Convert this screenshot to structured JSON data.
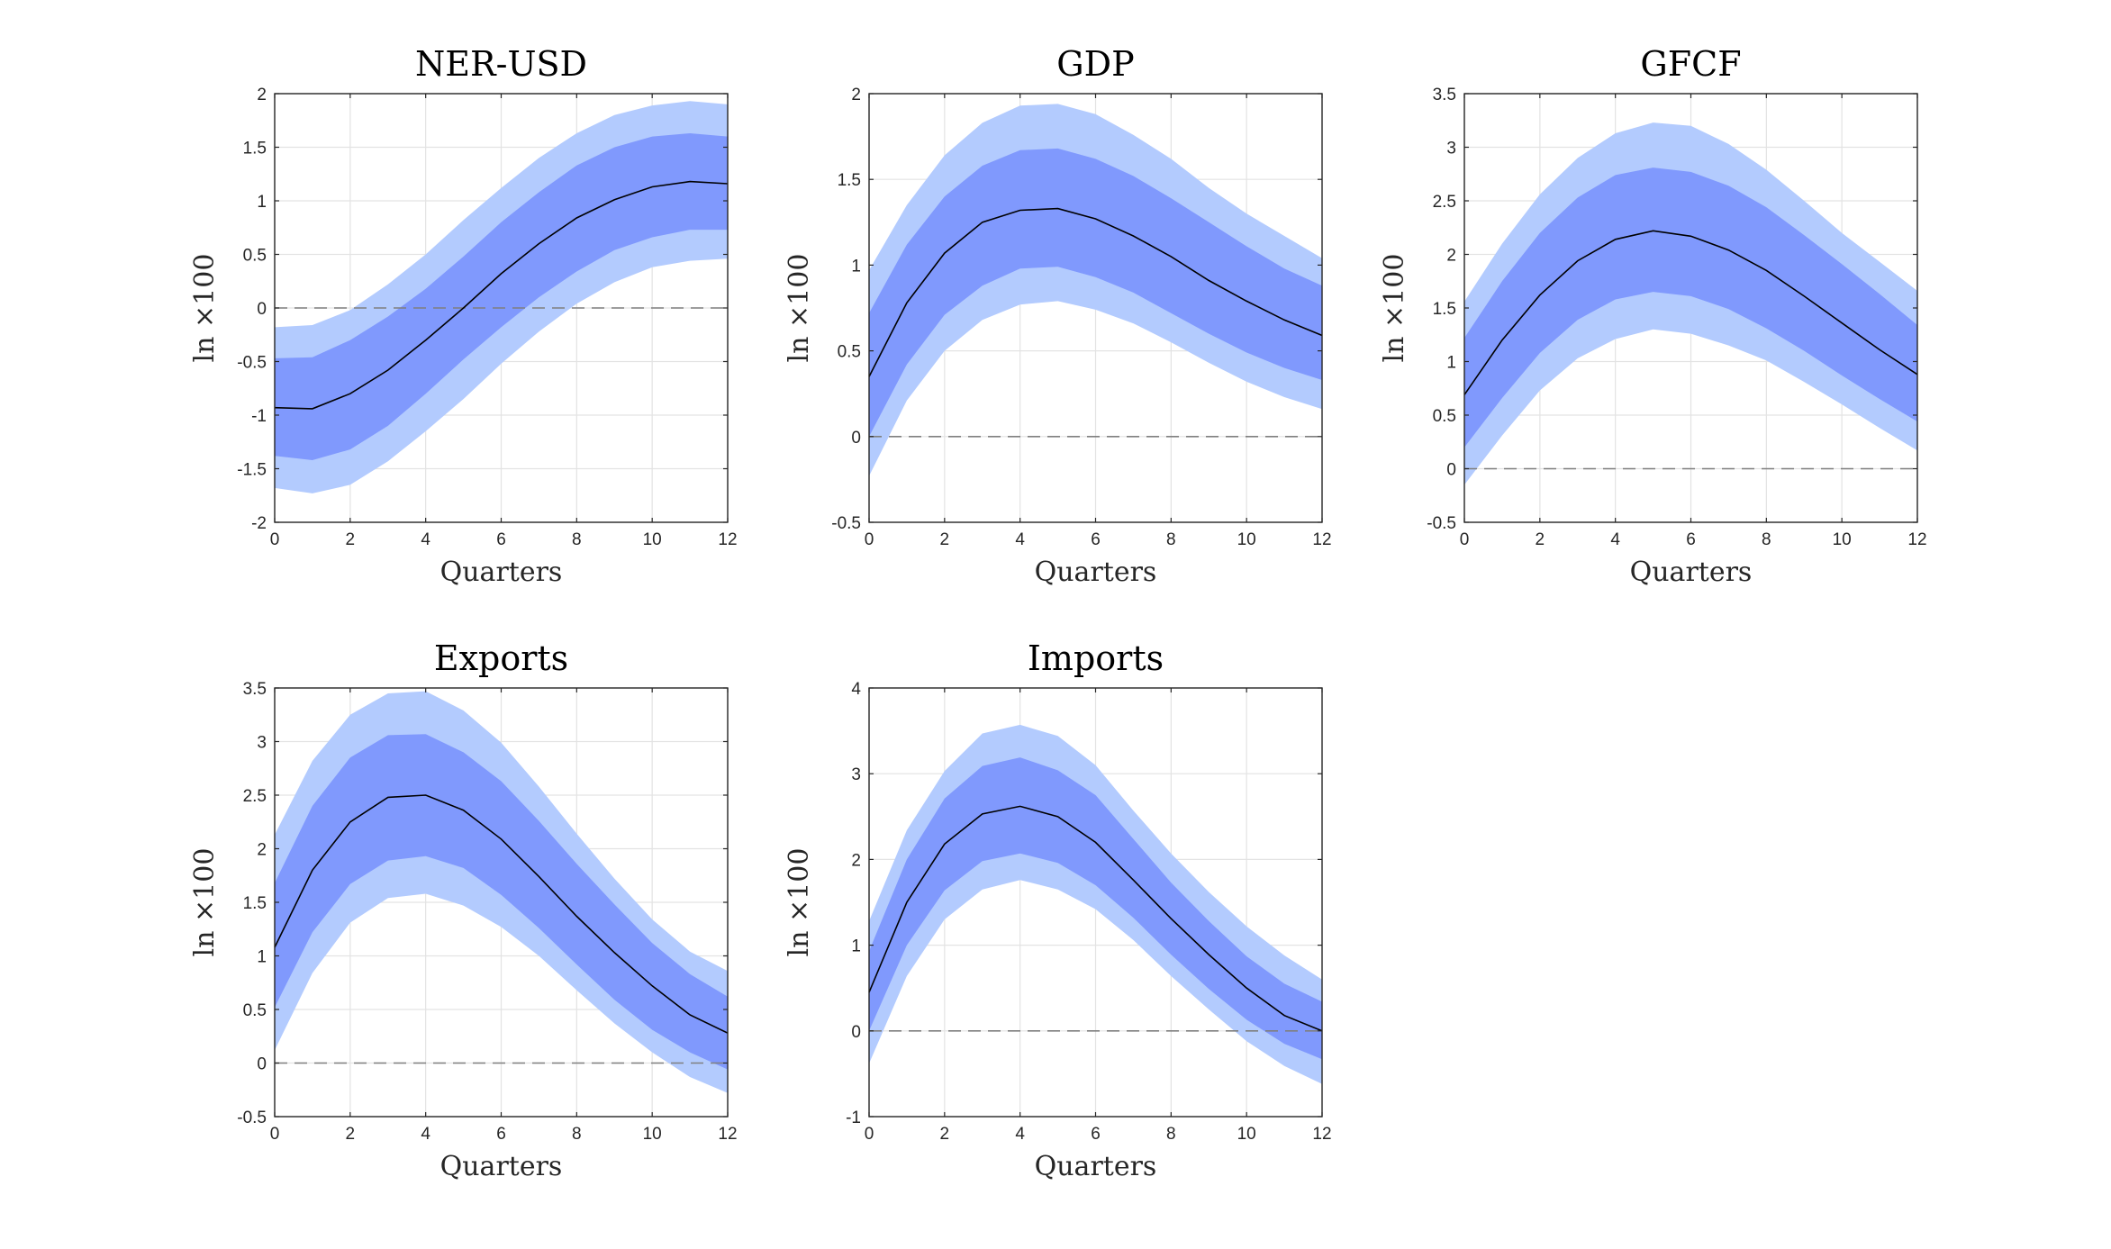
{
  "figure": {
    "colors": {
      "outer_band": "#b3cbfe",
      "inner_band": "#8099fd",
      "median_line": "#000000",
      "zero_line": "#7f7f7f",
      "grid": "#e3e3e3",
      "axis": "#262626"
    }
  },
  "chart_data": [
    {
      "type": "area",
      "title": "NER-USD",
      "xlabel": "Quarters",
      "ylabel": "ln ×100",
      "xlim": [
        0,
        12
      ],
      "ylim": [
        -2,
        2
      ],
      "xticks": [
        0,
        2,
        4,
        6,
        8,
        10,
        12
      ],
      "xtick_labels": [
        "0",
        "2",
        "4",
        "6",
        "8",
        "10",
        "12"
      ],
      "yticks": [
        -2,
        -1.5,
        -1,
        -0.5,
        0,
        0.5,
        1,
        1.5,
        2
      ],
      "ytick_labels": [
        "-2",
        "-1.5",
        "-1",
        "-0.5",
        "0",
        "0.5",
        "1",
        "1.5",
        "2"
      ],
      "grid": true,
      "x": [
        0,
        1,
        2,
        3,
        4,
        5,
        6,
        7,
        8,
        9,
        10,
        11,
        12
      ],
      "median": [
        -0.93,
        -0.94,
        -0.8,
        -0.58,
        -0.3,
        0.0,
        0.32,
        0.6,
        0.84,
        1.01,
        1.13,
        1.18,
        1.16
      ],
      "inner_band": {
        "lower": [
          -1.38,
          -1.42,
          -1.32,
          -1.1,
          -0.8,
          -0.48,
          -0.18,
          0.1,
          0.34,
          0.54,
          0.66,
          0.73,
          0.73
        ],
        "upper": [
          -0.47,
          -0.46,
          -0.3,
          -0.08,
          0.18,
          0.48,
          0.8,
          1.08,
          1.33,
          1.5,
          1.6,
          1.63,
          1.6
        ]
      },
      "outer_band": {
        "lower": [
          -1.68,
          -1.73,
          -1.65,
          -1.43,
          -1.15,
          -0.85,
          -0.52,
          -0.22,
          0.04,
          0.24,
          0.38,
          0.44,
          0.46
        ],
        "upper": [
          -0.18,
          -0.16,
          -0.02,
          0.22,
          0.5,
          0.82,
          1.12,
          1.4,
          1.63,
          1.8,
          1.89,
          1.93,
          1.9
        ]
      },
      "zero_line": 0
    },
    {
      "type": "area",
      "title": "GDP",
      "xlabel": "Quarters",
      "ylabel": "ln ×100",
      "xlim": [
        0,
        12
      ],
      "ylim": [
        -0.5,
        2
      ],
      "xticks": [
        0,
        2,
        4,
        6,
        8,
        10,
        12
      ],
      "xtick_labels": [
        "0",
        "2",
        "4",
        "6",
        "8",
        "10",
        "12"
      ],
      "yticks": [
        -0.5,
        0,
        0.5,
        1,
        1.5,
        2
      ],
      "ytick_labels": [
        "-0.5",
        "0",
        "0.5",
        "1",
        "1.5",
        "2"
      ],
      "grid": true,
      "x": [
        0,
        1,
        2,
        3,
        4,
        5,
        6,
        7,
        8,
        9,
        10,
        11,
        12
      ],
      "median": [
        0.35,
        0.78,
        1.07,
        1.25,
        1.32,
        1.33,
        1.27,
        1.17,
        1.05,
        0.91,
        0.79,
        0.68,
        0.59
      ],
      "inner_band": {
        "lower": [
          0.0,
          0.42,
          0.71,
          0.88,
          0.98,
          0.99,
          0.93,
          0.84,
          0.72,
          0.6,
          0.49,
          0.4,
          0.33
        ],
        "upper": [
          0.72,
          1.12,
          1.4,
          1.58,
          1.67,
          1.68,
          1.62,
          1.52,
          1.39,
          1.25,
          1.11,
          0.98,
          0.88
        ]
      },
      "outer_band": {
        "lower": [
          -0.23,
          0.21,
          0.5,
          0.68,
          0.77,
          0.79,
          0.74,
          0.66,
          0.55,
          0.43,
          0.32,
          0.23,
          0.16
        ],
        "upper": [
          0.97,
          1.35,
          1.64,
          1.83,
          1.93,
          1.94,
          1.88,
          1.76,
          1.62,
          1.45,
          1.3,
          1.17,
          1.04
        ]
      },
      "zero_line": 0
    },
    {
      "type": "area",
      "title": "GFCF",
      "xlabel": "Quarters",
      "ylabel": "ln ×100",
      "xlim": [
        0,
        12
      ],
      "ylim": [
        -0.5,
        3.5
      ],
      "xticks": [
        0,
        2,
        4,
        6,
        8,
        10,
        12
      ],
      "xtick_labels": [
        "0",
        "2",
        "4",
        "6",
        "8",
        "10",
        "12"
      ],
      "yticks": [
        -0.5,
        0,
        0.5,
        1,
        1.5,
        2,
        2.5,
        3,
        3.5
      ],
      "ytick_labels": [
        "-0.5",
        "0",
        "0.5",
        "1",
        "1.5",
        "2",
        "2.5",
        "3",
        "3.5"
      ],
      "grid": true,
      "x": [
        0,
        1,
        2,
        3,
        4,
        5,
        6,
        7,
        8,
        9,
        10,
        11,
        12
      ],
      "median": [
        0.69,
        1.2,
        1.62,
        1.94,
        2.14,
        2.22,
        2.17,
        2.04,
        1.85,
        1.61,
        1.36,
        1.11,
        0.88
      ],
      "inner_band": {
        "lower": [
          0.2,
          0.66,
          1.08,
          1.39,
          1.58,
          1.65,
          1.61,
          1.49,
          1.31,
          1.1,
          0.87,
          0.65,
          0.44
        ],
        "upper": [
          1.22,
          1.75,
          2.2,
          2.53,
          2.74,
          2.81,
          2.77,
          2.64,
          2.44,
          2.18,
          1.91,
          1.63,
          1.34
        ]
      },
      "outer_band": {
        "lower": [
          -0.15,
          0.31,
          0.73,
          1.03,
          1.21,
          1.3,
          1.26,
          1.15,
          1.01,
          0.81,
          0.6,
          0.38,
          0.17
        ],
        "upper": [
          1.56,
          2.1,
          2.56,
          2.9,
          3.13,
          3.23,
          3.2,
          3.03,
          2.79,
          2.5,
          2.2,
          1.93,
          1.66
        ]
      },
      "zero_line": 0
    },
    {
      "type": "area",
      "title": "Exports",
      "xlabel": "Quarters",
      "ylabel": "ln ×100",
      "xlim": [
        0,
        12
      ],
      "ylim": [
        -0.5,
        3.5
      ],
      "xticks": [
        0,
        2,
        4,
        6,
        8,
        10,
        12
      ],
      "xtick_labels": [
        "0",
        "2",
        "4",
        "6",
        "8",
        "10",
        "12"
      ],
      "yticks": [
        -0.5,
        0,
        0.5,
        1,
        1.5,
        2,
        2.5,
        3,
        3.5
      ],
      "ytick_labels": [
        "-0.5",
        "0",
        "0.5",
        "1",
        "1.5",
        "2",
        "2.5",
        "3",
        "3.5"
      ],
      "grid": true,
      "x": [
        0,
        1,
        2,
        3,
        4,
        5,
        6,
        7,
        8,
        9,
        10,
        11,
        12
      ],
      "median": [
        1.08,
        1.8,
        2.25,
        2.48,
        2.5,
        2.36,
        2.09,
        1.74,
        1.37,
        1.03,
        0.72,
        0.45,
        0.28
      ],
      "inner_band": {
        "lower": [
          0.52,
          1.22,
          1.67,
          1.89,
          1.93,
          1.82,
          1.57,
          1.26,
          0.92,
          0.59,
          0.31,
          0.1,
          -0.06
        ],
        "upper": [
          1.68,
          2.4,
          2.85,
          3.06,
          3.07,
          2.9,
          2.63,
          2.26,
          1.86,
          1.48,
          1.12,
          0.83,
          0.62
        ]
      },
      "outer_band": {
        "lower": [
          0.12,
          0.84,
          1.31,
          1.54,
          1.58,
          1.47,
          1.27,
          1.0,
          0.68,
          0.37,
          0.1,
          -0.13,
          -0.28
        ],
        "upper": [
          2.13,
          2.82,
          3.25,
          3.45,
          3.47,
          3.29,
          2.99,
          2.58,
          2.14,
          1.72,
          1.34,
          1.04,
          0.86
        ]
      },
      "zero_line": 0
    },
    {
      "type": "area",
      "title": "Imports",
      "xlabel": "Quarters",
      "ylabel": "ln ×100",
      "xlim": [
        0,
        12
      ],
      "ylim": [
        -1,
        4
      ],
      "xticks": [
        0,
        2,
        4,
        6,
        8,
        10,
        12
      ],
      "xtick_labels": [
        "0",
        "2",
        "4",
        "6",
        "8",
        "10",
        "12"
      ],
      "yticks": [
        -1,
        0,
        1,
        2,
        3,
        4
      ],
      "ytick_labels": [
        "-1",
        "0",
        "1",
        "2",
        "3",
        "4"
      ],
      "grid": true,
      "x": [
        0,
        1,
        2,
        3,
        4,
        5,
        6,
        7,
        8,
        9,
        10,
        11,
        12
      ],
      "median": [
        0.45,
        1.5,
        2.18,
        2.53,
        2.62,
        2.5,
        2.2,
        1.76,
        1.31,
        0.89,
        0.5,
        0.18,
        0.0
      ],
      "inner_band": {
        "lower": [
          0.0,
          1.0,
          1.64,
          1.98,
          2.07,
          1.96,
          1.7,
          1.32,
          0.89,
          0.49,
          0.13,
          -0.15,
          -0.33
        ],
        "upper": [
          0.93,
          2.0,
          2.71,
          3.09,
          3.19,
          3.04,
          2.75,
          2.24,
          1.73,
          1.28,
          0.87,
          0.55,
          0.34
        ]
      },
      "outer_band": {
        "lower": [
          -0.38,
          0.64,
          1.3,
          1.65,
          1.76,
          1.65,
          1.42,
          1.06,
          0.64,
          0.25,
          -0.12,
          -0.41,
          -0.62
        ],
        "upper": [
          1.28,
          2.34,
          3.03,
          3.47,
          3.57,
          3.44,
          3.1,
          2.57,
          2.07,
          1.62,
          1.22,
          0.88,
          0.6
        ]
      },
      "zero_line": 0
    }
  ]
}
